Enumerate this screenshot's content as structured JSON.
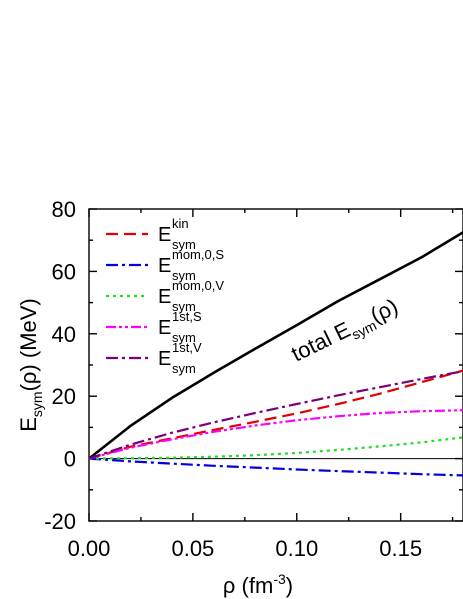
{
  "chart_data": {
    "type": "line",
    "xlabel": {
      "main": "ρ (fm",
      "sup": "-3",
      "close": ")"
    },
    "ylabel": {
      "main": "E",
      "sub": "sym",
      "rest": "(ρ) (MeV)"
    },
    "xlim": [
      0.0,
      0.18
    ],
    "ylim": [
      -20,
      80
    ],
    "xticks": [
      0.0,
      0.05,
      0.1,
      0.15
    ],
    "xtick_labels": [
      "0.00",
      "0.05",
      "0.10",
      "0.15"
    ],
    "yticks": [
      -20,
      0,
      20,
      40,
      60,
      80
    ],
    "ytick_labels": [
      "-20",
      "0",
      "20",
      "40",
      "60",
      "80"
    ],
    "legend_position": "top-left",
    "grid": false,
    "annotation": {
      "text": "total E",
      "sub": "sym",
      "rest": "(ρ)"
    },
    "series": [
      {
        "label": "total",
        "color": "#000000",
        "dash": "solid",
        "in_legend": false,
        "x": [
          0.0,
          0.02,
          0.04,
          0.06,
          0.08,
          0.1,
          0.12,
          0.14,
          0.16,
          0.18
        ],
        "y": [
          0,
          10.5,
          19.5,
          27.5,
          35.2,
          42.8,
          50.5,
          57.5,
          64.5,
          72.5
        ]
      },
      {
        "label": "E",
        "sup": "kin",
        "sub": "sym",
        "color": "#e00000",
        "dash": "long-dash",
        "in_legend": true,
        "x": [
          0.0,
          0.02,
          0.04,
          0.06,
          0.08,
          0.1,
          0.12,
          0.14,
          0.16,
          0.18
        ],
        "y": [
          0,
          3.8,
          6.5,
          9.2,
          11.8,
          14.5,
          17.5,
          20.8,
          24.5,
          28.2
        ]
      },
      {
        "label": "E",
        "sup": "mom,0,S",
        "sub": "sym",
        "color": "#0000e0",
        "dash": "dash-dot",
        "in_legend": true,
        "x": [
          0.0,
          0.02,
          0.04,
          0.06,
          0.08,
          0.1,
          0.12,
          0.14,
          0.16,
          0.18
        ],
        "y": [
          0,
          -0.9,
          -1.6,
          -2.3,
          -2.9,
          -3.5,
          -4.0,
          -4.5,
          -5.0,
          -5.4
        ]
      },
      {
        "label": "E",
        "sup": "mom,0,V",
        "sub": "sym",
        "color": "#22dd22",
        "dash": "dot",
        "in_legend": true,
        "x": [
          0.0,
          0.02,
          0.04,
          0.06,
          0.08,
          0.1,
          0.12,
          0.14,
          0.16,
          0.18
        ],
        "y": [
          0,
          0.1,
          0.3,
          0.6,
          1.1,
          1.8,
          2.8,
          3.9,
          5.2,
          6.8
        ]
      },
      {
        "label": "E",
        "sup": "1st,S",
        "sub": "sym",
        "color": "#ff00ff",
        "dash": "dash-dot-dot",
        "in_legend": true,
        "x": [
          0.0,
          0.02,
          0.04,
          0.06,
          0.08,
          0.1,
          0.12,
          0.14,
          0.16,
          0.18
        ],
        "y": [
          0,
          3.5,
          6.2,
          8.6,
          10.6,
          12.3,
          13.6,
          14.6,
          15.2,
          15.5
        ]
      },
      {
        "label": "E",
        "sup": "1st,V",
        "sub": "sym",
        "color": "#7a007a",
        "dash": "dash-dot",
        "in_legend": true,
        "x": [
          0.0,
          0.02,
          0.04,
          0.06,
          0.08,
          0.1,
          0.12,
          0.14,
          0.16,
          0.18
        ],
        "y": [
          0,
          4.5,
          8.3,
          11.6,
          14.6,
          17.5,
          20.3,
          22.9,
          25.5,
          28.0
        ]
      }
    ]
  }
}
